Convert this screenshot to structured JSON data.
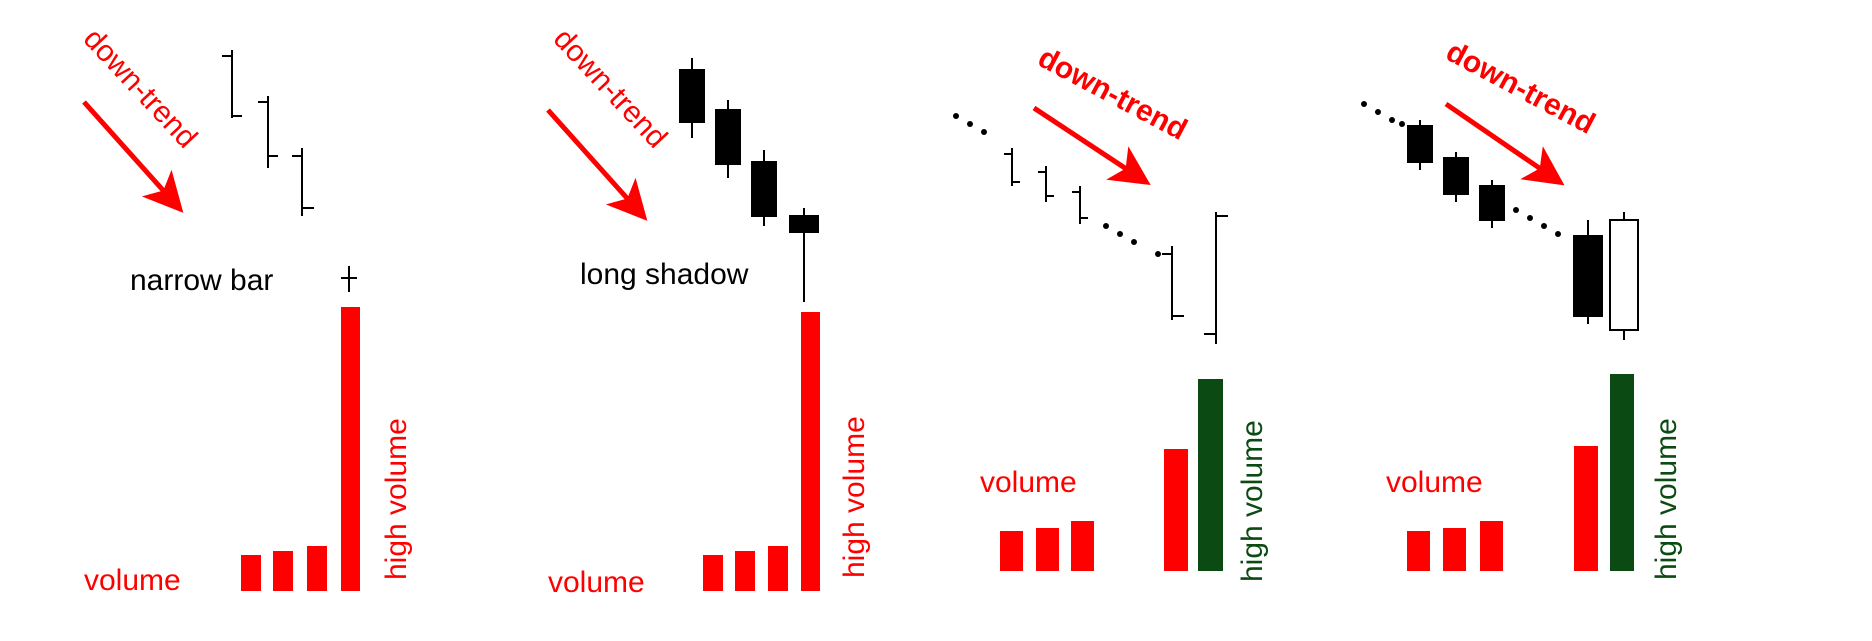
{
  "colors": {
    "red": "#ff0000",
    "green": "#0b4a12",
    "black": "#000000",
    "white": "#ffffff"
  },
  "icons": [
    "down-trend-arrow-icon"
  ],
  "panels": [
    {
      "trend_label": "down-trend",
      "price_label": "narrow bar",
      "volume_label": "volume",
      "high_volume_label": "high volume",
      "high_volume_color": "red"
    },
    {
      "trend_label": "down-trend",
      "price_label": "long shadow",
      "volume_label": "volume",
      "high_volume_label": "high volume",
      "high_volume_color": "red"
    },
    {
      "trend_label": "down-trend",
      "price_label": "",
      "volume_label": "volume",
      "high_volume_label": "high volume",
      "high_volume_color": "green"
    },
    {
      "trend_label": "down-trend",
      "price_label": "",
      "volume_label": "volume",
      "high_volume_label": "high volume",
      "high_volume_color": "green"
    }
  ]
}
